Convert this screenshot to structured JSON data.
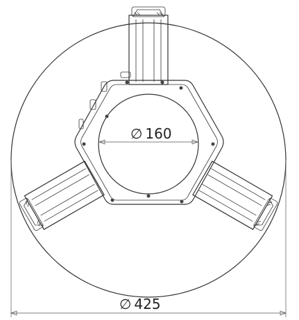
{
  "drawing": {
    "inner_diameter_label": "160",
    "outer_diameter_label": "425",
    "diameter_symbol": "∅",
    "line_color": "#333333",
    "background_color": "#ffffff"
  }
}
